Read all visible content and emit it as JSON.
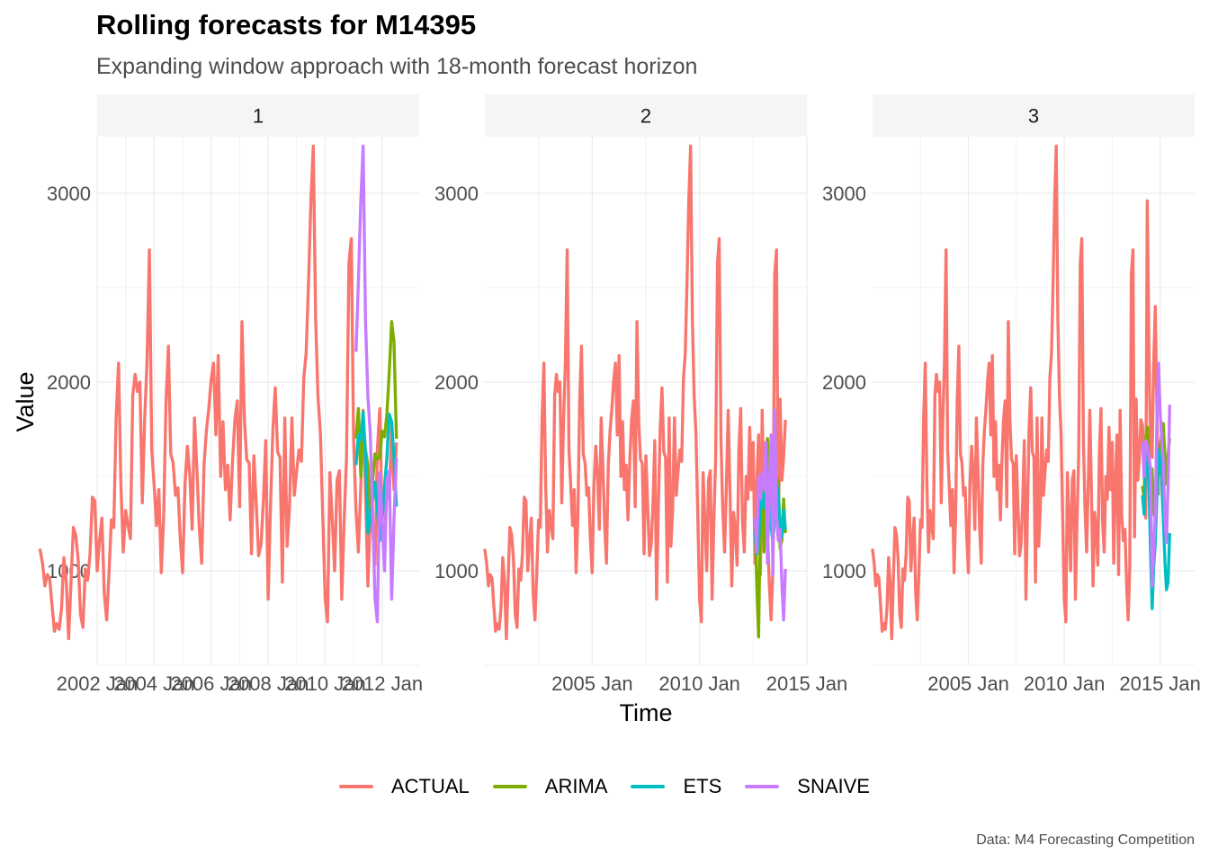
{
  "title": "Rolling forecasts for M14395",
  "subtitle": "Expanding window approach with 18-month forecast horizon",
  "caption": "Data: M4 Forecasting Competition",
  "colors": {
    "ACTUAL": "#F8766D",
    "ARIMA": "#7CAE00",
    "ETS": "#00BFC4",
    "SNAIVE": "#C77CFF"
  },
  "chart_data": {
    "type": "line",
    "xlabel": "Time",
    "ylabel": "Value",
    "ylim": [
      500,
      3300
    ],
    "y_ticks": [
      1000,
      2000,
      3000
    ],
    "y_tick_labels": [
      "1000",
      "2000",
      "3000"
    ],
    "grid": true,
    "legend_position": "bottom",
    "legend": [
      "ACTUAL",
      "ARIMA",
      "ETS",
      "SNAIVE"
    ],
    "panels": [
      {
        "label": "1",
        "xlim": [
          2002.0,
          2013.3
        ],
        "x_ticks": [
          2002,
          2004,
          2006,
          2008,
          2010,
          2012
        ],
        "x_tick_labels": [
          "2002 Jan",
          "2004 Jan",
          "2006 Jan",
          "2008 Jan",
          "2010 Jan",
          "2012 Jan"
        ],
        "actual_end": 2011.0,
        "forecast_start": 2011.0,
        "forecast_end": 2012.5
      },
      {
        "label": "2",
        "xlim": [
          2000.0,
          2015.0
        ],
        "x_ticks": [
          2005,
          2010,
          2015
        ],
        "x_tick_labels": [
          "2005 Jan",
          "2010 Jan",
          "2015 Jan"
        ],
        "actual_end": 2012.5,
        "forecast_start": 2012.5,
        "forecast_end": 2014.0
      },
      {
        "label": "3",
        "xlim": [
          2000.0,
          2016.8
        ],
        "x_ticks": [
          2005,
          2010,
          2015
        ],
        "x_tick_labels": [
          "2005 Jan",
          "2010 Jan",
          "2015 Jan"
        ],
        "actual_end": 2014.0,
        "forecast_start": 2014.0,
        "forecast_end": 2015.5
      }
    ],
    "actual_series": {
      "name": "ACTUAL",
      "x_start": 2000.0,
      "step_months": 1,
      "values": [
        1110,
        1040,
        920,
        980,
        960,
        820,
        680,
        720,
        690,
        800,
        1070,
        940,
        640,
        950,
        1230,
        1190,
        1060,
        770,
        700,
        1010,
        950,
        1090,
        1390,
        1370,
        1000,
        1160,
        1280,
        880,
        740,
        990,
        1270,
        1230,
        1810,
        2100,
        1460,
        1100,
        1320,
        1240,
        1170,
        1930,
        2040,
        1950,
        2000,
        1360,
        1800,
        2100,
        2700,
        1640,
        1450,
        1240,
        1430,
        990,
        1280,
        1900,
        2190,
        1620,
        1570,
        1400,
        1440,
        1170,
        990,
        1460,
        1660,
        1510,
        1220,
        1810,
        1540,
        1230,
        1040,
        1560,
        1740,
        1860,
        2010,
        2100,
        1720,
        2140,
        1500,
        1790,
        1430,
        1560,
        1270,
        1580,
        1800,
        1900,
        1340,
        2320,
        1800,
        1590,
        1570,
        1090,
        1610,
        1350,
        1080,
        1140,
        1370,
        1690,
        850,
        1340,
        1750,
        1970,
        1630,
        1600,
        940,
        1810,
        1130,
        1330,
        1810,
        1400,
        1530,
        1640,
        1580,
        2020,
        2150,
        2530,
        2960,
        3250,
        2330,
        1920,
        1730,
        1290,
        850,
        730,
        1520,
        1270,
        1000,
        1480,
        1530,
        850,
        1270,
        1600,
        2630,
        2760,
        1690,
        1320,
        1100,
        1450,
        1850,
        1420,
        920,
        1310,
        1220,
        1030,
        1640,
        1860,
        1260,
        1100,
        1500,
        1380,
        1760,
        1430,
        1680,
        1040,
        1460,
        1720,
        980,
        1850,
        1290,
        1160,
        1220,
        930,
        740,
        1010,
        2570,
        2700,
        1180,
        1910,
        1480,
        1600,
        1800,
        1770,
        1540,
        1280,
        2960,
        2190,
        1640,
        1600,
        2100,
        2400,
        1850,
        1400
      ]
    },
    "forecast_series": [
      {
        "name": "ARIMA",
        "panel": "1",
        "values": [
          1700,
          1860,
          1500,
          1790,
          1640,
          1560,
          1310,
          1480,
          1620,
          1590,
          1600,
          1740,
          1710,
          1830,
          2050,
          2320,
          2210,
          1700
        ]
      },
      {
        "name": "ETS",
        "panel": "1",
        "values": [
          1560,
          1720,
          1690,
          1840,
          1610,
          1200,
          1270,
          1370,
          1470,
          1330,
          1160,
          1260,
          1450,
          1600,
          1830,
          1790,
          1600,
          1340
        ]
      },
      {
        "name": "SNAIVE",
        "panel": "1",
        "values": [
          2160,
          2530,
          2960,
          3250,
          2330,
          1920,
          1730,
          1290,
          850,
          730,
          1520,
          1270,
          1000,
          1480,
          1530,
          850,
          1270,
          1600
        ]
      },
      {
        "name": "ARIMA",
        "panel": "2",
        "values": [
          1280,
          920,
          650,
          1330,
          1420,
          1100,
          1550,
          1700,
          1500,
          1380,
          1200,
          1280,
          1440,
          1480,
          1120,
          1160,
          1380,
          1200
        ]
      },
      {
        "name": "ETS",
        "panel": "2",
        "values": [
          1200,
          1090,
          1150,
          1380,
          1400,
          1330,
          1500,
          1470,
          1360,
          1230,
          1150,
          1280,
          1460,
          1420,
          1230,
          1180,
          1320,
          1220
        ]
      },
      {
        "name": "SNAIVE",
        "panel": "2",
        "values": [
          1280,
          1100,
          1500,
          1380,
          1520,
          1430,
          1680,
          1040,
          1460,
          1720,
          980,
          1850,
          1290,
          1160,
          1220,
          930,
          740,
          1010
        ]
      },
      {
        "name": "ARIMA",
        "panel": "3",
        "values": [
          1450,
          1380,
          1700,
          1760,
          1600,
          1430,
          1540,
          1310,
          1280,
          1480,
          1500,
          1660,
          1720,
          1780,
          1600,
          1460,
          1620,
          1700
        ]
      },
      {
        "name": "ETS",
        "panel": "3",
        "values": [
          1400,
          1300,
          1600,
          1650,
          1470,
          1100,
          800,
          1020,
          1150,
          1400,
          1640,
          1600,
          1500,
          1280,
          1050,
          900,
          940,
          1200
        ]
      },
      {
        "name": "SNAIVE",
        "panel": "3",
        "values": [
          1680,
          1500,
          1690,
          1660,
          1610,
          1540,
          920,
          1100,
          1300,
          1800,
          2100,
          1850,
          1700,
          1580,
          1280,
          1150,
          1450,
          1880
        ]
      }
    ]
  }
}
